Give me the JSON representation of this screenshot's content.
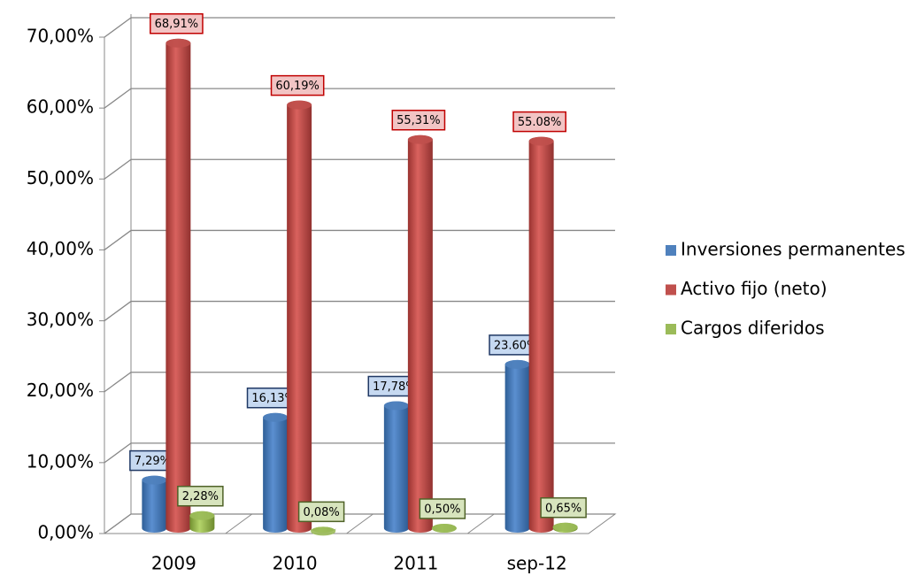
{
  "chart_data": {
    "type": "bar3d",
    "categories": [
      "2009",
      "2010",
      "2011",
      "sep-12"
    ],
    "series": [
      {
        "name": "Inversiones permanentes",
        "color": "#4f81bd",
        "values": [
          7.29,
          16.13,
          17.78,
          23.6
        ],
        "value_labels": [
          "7,29%",
          "16,13%",
          "17,78%",
          "23.60%"
        ]
      },
      {
        "name": "Activo fijo (neto)",
        "color": "#c0504d",
        "values": [
          68.91,
          60.19,
          55.31,
          55.08
        ],
        "value_labels": [
          "68,91%",
          "60,19%",
          "55,31%",
          "55.08%"
        ]
      },
      {
        "name": "Cargos diferidos",
        "color": "#9bbb59",
        "values": [
          2.28,
          0.08,
          0.5,
          0.65
        ],
        "value_labels": [
          "2,28%",
          "0,08%",
          "0,50%",
          "0,65%"
        ]
      }
    ],
    "ylim": [
      0,
      70
    ],
    "yticks": [
      {
        "value": 0,
        "label": "0,00%"
      },
      {
        "value": 10,
        "label": "10,00%"
      },
      {
        "value": 20,
        "label": "20,00%"
      },
      {
        "value": 30,
        "label": "30,00%"
      },
      {
        "value": 40,
        "label": "40,00%"
      },
      {
        "value": 50,
        "label": "50,00%"
      },
      {
        "value": 60,
        "label": "60,00%"
      },
      {
        "value": 70,
        "label": "70,00%"
      }
    ],
    "grid": true,
    "legend": "right"
  }
}
